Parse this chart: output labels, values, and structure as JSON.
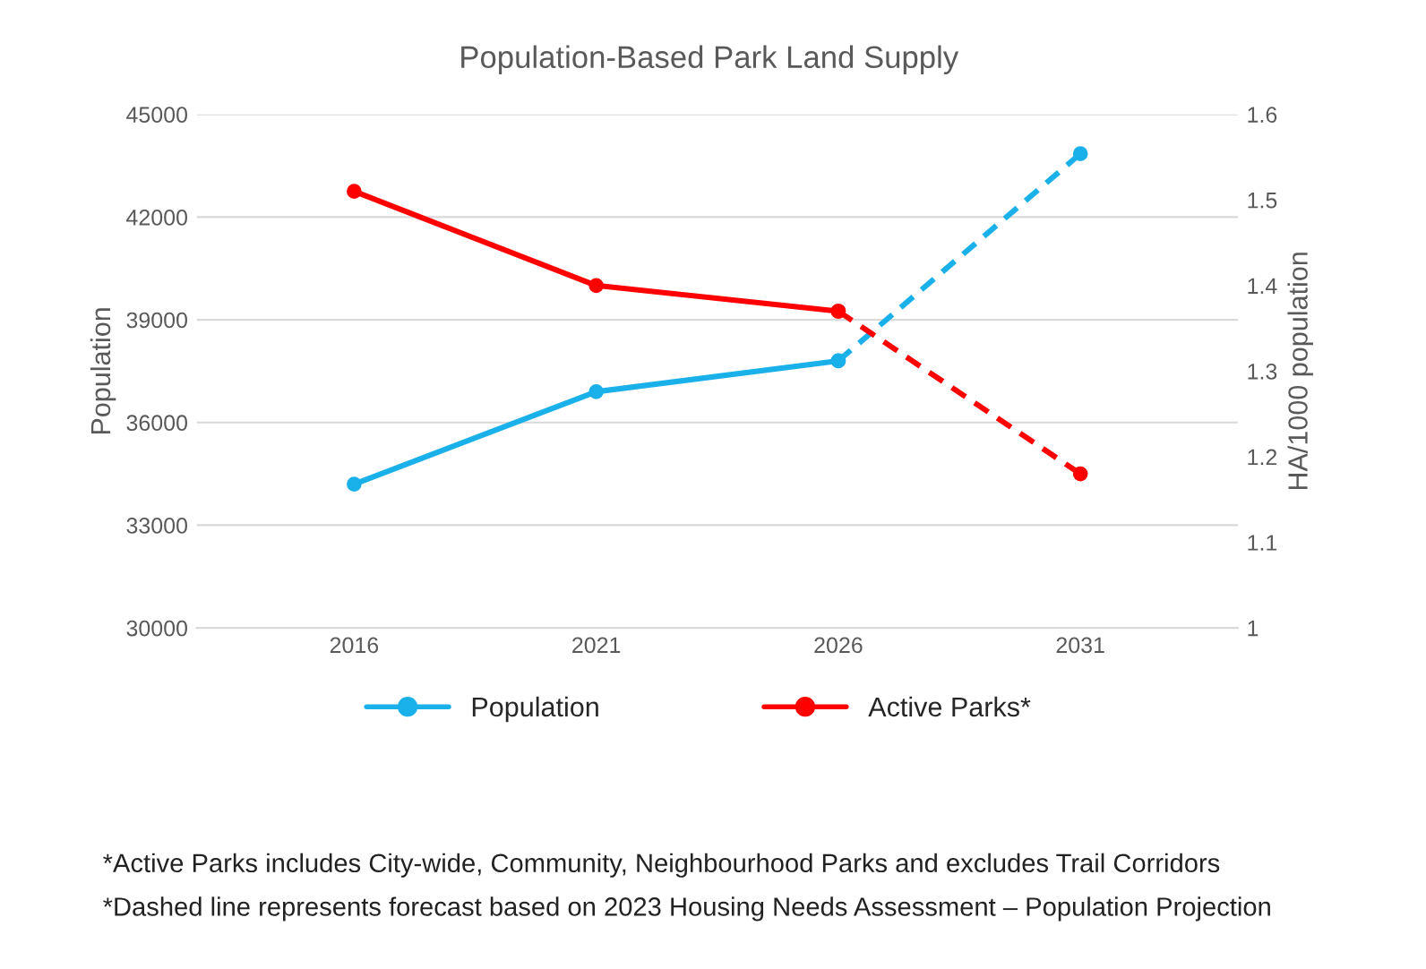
{
  "chart_data": {
    "type": "line",
    "title": "Population-Based Park Land Supply",
    "categories": [
      "2016",
      "2021",
      "2026",
      "2031"
    ],
    "ylabel": "Population",
    "y2label": "HA/1000 population",
    "ylim": [
      30000,
      45000
    ],
    "yticks": [
      30000,
      33000,
      36000,
      39000,
      42000,
      45000
    ],
    "y2lim": [
      1,
      1.6
    ],
    "y2ticks": [
      {
        "value": 1,
        "label": "1"
      },
      1.1,
      1.2,
      1.3,
      1.4,
      1.5,
      1.6
    ],
    "series": [
      {
        "name": "Population",
        "color": "#1ab0ea",
        "values": [
          34200,
          36900,
          37800,
          null
        ],
        "line_style": "solid"
      },
      {
        "name": "Active Parks*",
        "color": "#ff0000",
        "axis": "y2",
        "values": [
          1.51,
          1.4,
          1.37,
          null
        ],
        "line_style": "solid"
      },
      {
        "color": "#1ab0ea",
        "values": [
          null,
          null,
          37800,
          43850
        ],
        "line_style": "dashed"
      },
      {
        "color": "#ff0000",
        "axis": "y2",
        "values": [
          null,
          null,
          1.37,
          1.18
        ],
        "line_style": "dashed"
      }
    ],
    "marker": "circle",
    "grid": "y",
    "legend": "bottom",
    "annotations": [
      "*Active Parks includes City-wide, Community, Neighbourhood Parks and excludes Trail Corridors",
      "*Dashed line represents forecast based on 2023 Housing Needs Assessment – Population Projection"
    ]
  }
}
